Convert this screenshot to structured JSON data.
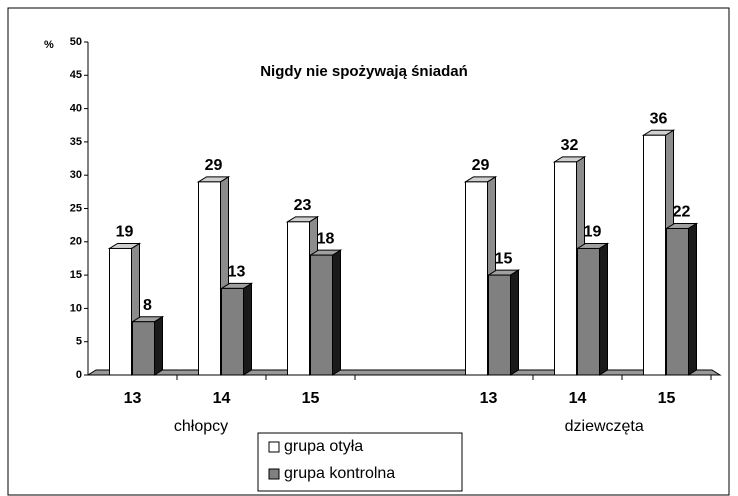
{
  "chart_data": {
    "type": "bar3d",
    "title": "Nigdy nie spożywają śniadań",
    "y_axis_label": "%",
    "categories": [
      "13",
      "14",
      "15",
      null,
      "13",
      "14",
      "15"
    ],
    "groups": [
      "chłopcy",
      "dziewczęta"
    ],
    "series": [
      {
        "name": "grupa otyła",
        "color": "#ffffff",
        "values": [
          19,
          29,
          23,
          null,
          29,
          32,
          36
        ]
      },
      {
        "name": "grupa kontrolna",
        "color": "#808080",
        "values": [
          8,
          13,
          18,
          null,
          15,
          19,
          22
        ]
      }
    ],
    "ylim": [
      0,
      50
    ],
    "yticks": [
      0,
      5,
      10,
      15,
      20,
      25,
      30,
      35,
      40,
      45,
      50
    ]
  }
}
